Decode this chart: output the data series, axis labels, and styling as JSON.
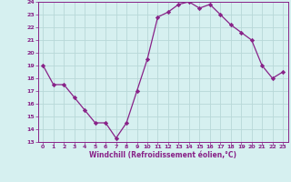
{
  "x": [
    0,
    1,
    2,
    3,
    4,
    5,
    6,
    7,
    8,
    9,
    10,
    11,
    12,
    13,
    14,
    15,
    16,
    17,
    18,
    19,
    20,
    21,
    22,
    23
  ],
  "y": [
    19,
    17.5,
    17.5,
    16.5,
    15.5,
    14.5,
    14.5,
    13.3,
    14.5,
    17,
    19.5,
    22.8,
    23.2,
    23.8,
    24.0,
    23.5,
    23.8,
    23.0,
    22.2,
    21.6,
    21.0,
    19.0,
    18.0,
    18.5
  ],
  "ylim": [
    13,
    24
  ],
  "xlim": [
    -0.5,
    23.5
  ],
  "yticks": [
    13,
    14,
    15,
    16,
    17,
    18,
    19,
    20,
    21,
    22,
    23,
    24
  ],
  "xticks": [
    0,
    1,
    2,
    3,
    4,
    5,
    6,
    7,
    8,
    9,
    10,
    11,
    12,
    13,
    14,
    15,
    16,
    17,
    18,
    19,
    20,
    21,
    22,
    23
  ],
  "xlabel": "Windchill (Refroidissement éolien,°C)",
  "line_color": "#882288",
  "marker": "D",
  "marker_size": 2.2,
  "bg_color": "#d6f0f0",
  "grid_color": "#b8d8d8",
  "axis_label_color": "#882288",
  "tick_label_color": "#882288",
  "figsize": [
    3.2,
    2.0
  ],
  "dpi": 100
}
